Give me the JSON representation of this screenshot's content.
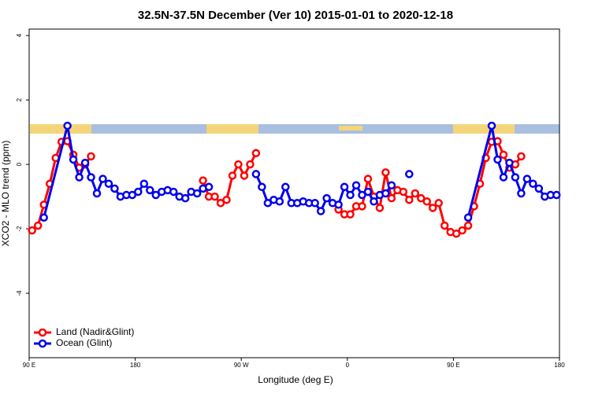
{
  "chart_data": {
    "type": "line",
    "title": "32.5N-37.5N December (Ver 10)   2015-01-01 to 2020-12-18",
    "x_label": "Longitude (deg E)",
    "y_label": "XCO2 - MLO trend (ppm)",
    "xlim": [
      90,
      540
    ],
    "xticks": [
      {
        "value": 90,
        "label": "90 E"
      },
      180,
      {
        "value": 270,
        "label": "90 W"
      },
      {
        "value": 360,
        "label": "0"
      },
      {
        "value": 450,
        "label": "90 E"
      },
      {
        "value": 540,
        "label": "180"
      }
    ],
    "ylim": [
      -6,
      4.2
    ],
    "yticks": [
      4,
      2,
      0,
      -2,
      -4
    ],
    "legend": "bottomleft",
    "series": [
      {
        "name": "Land (Nadir&Glint)",
        "color": "#ff0000",
        "x": [
          92.5,
          97.5,
          102.5,
          107.5,
          112.5,
          117.5,
          122.5,
          127.5,
          132.5,
          137.5,
          142.5,
          147.5,
          237.5,
          242.5,
          247.5,
          252.5,
          257.5,
          262.5,
          267.5,
          272.5,
          277.5,
          282.5,
          287.5,
          352.5,
          357.5,
          362.5,
          367.5,
          372.5,
          377.5,
          382.5,
          387.5,
          392.5,
          397.5,
          402.5,
          407.5,
          412.5,
          417.5,
          422.5,
          427.5,
          432.5,
          437.5,
          442.5,
          447.5,
          452.5,
          457.5,
          462.5,
          467.5,
          472.5,
          477.5,
          482.5,
          487.5,
          492.5,
          497.5,
          502.5,
          507.5
        ],
        "values": [
          -2.05,
          -1.9,
          -1.25,
          -0.6,
          0.2,
          0.7,
          0.72,
          0.3,
          -0.1,
          0.0,
          0.25,
          null,
          -0.5,
          -1.0,
          -1.0,
          -1.2,
          -1.1,
          -0.35,
          0.0,
          -0.35,
          0.0,
          0.35,
          null,
          -1.4,
          -1.55,
          -1.55,
          -1.3,
          -1.3,
          -0.45,
          -1.0,
          -1.35,
          -0.25,
          -1.05,
          -0.8,
          -0.85,
          -1.1,
          -0.9,
          -1.05,
          -1.15,
          -1.35,
          -1.2,
          -1.9,
          -2.1,
          -2.15,
          -2.05,
          -1.9,
          -1.3,
          -0.6,
          0.2,
          0.7,
          0.72,
          0.3,
          -0.1,
          0.0,
          0.25
        ]
      },
      {
        "name": "Ocean (Glint)",
        "color": "#0000ee",
        "x": [
          102.5,
          122.5,
          127.5,
          132.5,
          137.5,
          142.5,
          147.5,
          152.5,
          157.5,
          162.5,
          167.5,
          172.5,
          177.5,
          182.5,
          187.5,
          192.5,
          197.5,
          202.5,
          207.5,
          212.5,
          217.5,
          222.5,
          227.5,
          232.5,
          237.5,
          242.5,
          247.5,
          282.5,
          287.5,
          292.5,
          297.5,
          302.5,
          307.5,
          312.5,
          317.5,
          322.5,
          327.5,
          332.5,
          337.5,
          342.5,
          347.5,
          352.5,
          357.5,
          362.5,
          367.5,
          372.5,
          377.5,
          382.5,
          387.5,
          392.5,
          397.5,
          402.5,
          412.5,
          417.5,
          462.5,
          482.5,
          487.5,
          492.5,
          497.5,
          502.5,
          507.5,
          512.5,
          517.5,
          522.5,
          527.5,
          532.5,
          537.5
        ],
        "values": [
          -1.65,
          1.2,
          0.15,
          -0.4,
          0.05,
          -0.4,
          -0.9,
          -0.45,
          -0.6,
          -0.75,
          -1.0,
          -0.95,
          -0.95,
          -0.85,
          -0.6,
          -0.8,
          -0.95,
          -0.85,
          -0.8,
          -0.85,
          -1.0,
          -1.05,
          -0.85,
          -0.9,
          -0.75,
          -0.7,
          null,
          -0.3,
          -0.7,
          -1.2,
          -1.1,
          -1.15,
          -0.7,
          -1.2,
          -1.2,
          -1.15,
          -1.2,
          -1.2,
          -1.45,
          -1.05,
          -1.2,
          -1.25,
          -0.7,
          -0.95,
          -0.65,
          -0.95,
          -0.85,
          -1.15,
          -0.95,
          -0.9,
          -0.65,
          null,
          -0.3,
          null,
          -1.65,
          1.2,
          0.15,
          -0.4,
          0.05,
          -0.4,
          -0.9,
          -0.45,
          -0.6,
          -0.75,
          -1.0,
          -0.95,
          -0.95
        ]
      }
    ]
  }
}
